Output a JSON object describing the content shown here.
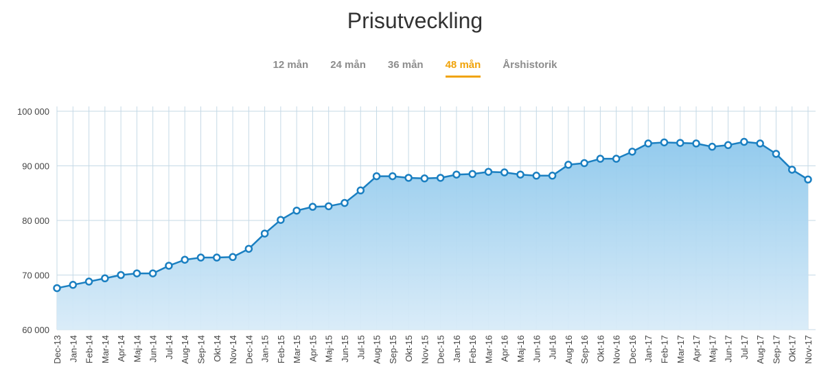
{
  "page": {
    "title": "Prisutveckling"
  },
  "tabs": [
    {
      "label": "12 mån",
      "active": false
    },
    {
      "label": "24 mån",
      "active": false
    },
    {
      "label": "36 mån",
      "active": false
    },
    {
      "label": "48 mån",
      "active": true
    },
    {
      "label": "Årshistorik",
      "active": false
    }
  ],
  "colors": {
    "accent": "#f0a30a",
    "line": "#1a7fc1",
    "fill_top": "#8ec8ec",
    "fill_bottom": "#d8ebf8",
    "grid": "#c5d9e6"
  },
  "chart_data": {
    "type": "area",
    "categories": [
      "Dec-13",
      "Jan-14",
      "Feb-14",
      "Mar-14",
      "Apr-14",
      "Maj-14",
      "Jun-14",
      "Jul-14",
      "Aug-14",
      "Sep-14",
      "Okt-14",
      "Nov-14",
      "Dec-14",
      "Jan-15",
      "Feb-15",
      "Mar-15",
      "Apr-15",
      "Maj-15",
      "Jun-15",
      "Jul-15",
      "Aug-15",
      "Sep-15",
      "Okt-15",
      "Nov-15",
      "Dec-15",
      "Jan-16",
      "Feb-16",
      "Mar-16",
      "Apr-16",
      "Maj-16",
      "Jun-16",
      "Jul-16",
      "Aug-16",
      "Sep-16",
      "Okt-16",
      "Nov-16",
      "Dec-16",
      "Jan-17",
      "Feb-17",
      "Mar-17",
      "Apr-17",
      "Maj-17",
      "Jun-17",
      "Jul-17",
      "Aug-17",
      "Sep-17",
      "Okt-17",
      "Nov-17"
    ],
    "series": [
      {
        "values": [
          67600,
          68200,
          68800,
          69400,
          70000,
          70300,
          70300,
          71700,
          72800,
          73200,
          73200,
          73300,
          74800,
          77600,
          80100,
          81800,
          82500,
          82600,
          83200,
          85500,
          88100,
          88100,
          87800,
          87700,
          87800,
          88400,
          88500,
          88900,
          88800,
          88400,
          88200,
          88200,
          90200,
          90500,
          91300,
          91300,
          92600,
          94100,
          94300,
          94200,
          94100,
          93500,
          93800,
          94400,
          94100,
          92200,
          89300,
          87500
        ]
      }
    ],
    "yticks": [
      "60 000",
      "70 000",
      "80 000",
      "90 000",
      "100 000"
    ],
    "ylim": [
      60000,
      100000
    ],
    "grid": true,
    "legend": "none"
  }
}
